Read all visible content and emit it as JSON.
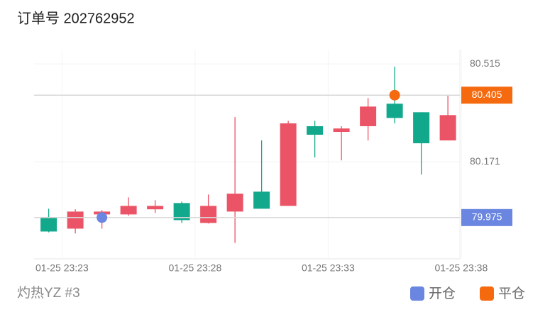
{
  "header": {
    "title": "订单号 202762952"
  },
  "footer": {
    "label": "灼热YZ #3"
  },
  "chart_data": {
    "type": "candlestick",
    "x": [
      0,
      1,
      2,
      3,
      4,
      5,
      6,
      7,
      8,
      9,
      10,
      11,
      12,
      13,
      14,
      15
    ],
    "open": [
      79.926,
      79.996,
      79.996,
      80.016,
      80.016,
      79.966,
      80.016,
      80.059,
      80.006,
      80.306,
      80.266,
      80.288,
      80.365,
      80.325,
      80.236,
      80.335
    ],
    "high": [
      80.006,
      80.004,
      80.001,
      80.046,
      80.036,
      80.031,
      80.056,
      80.328,
      80.246,
      80.315,
      80.315,
      80.296,
      80.395,
      80.505,
      80.345,
      80.405
    ],
    "low": [
      79.923,
      79.919,
      79.936,
      79.981,
      79.991,
      79.956,
      79.954,
      79.886,
      80.006,
      80.016,
      80.186,
      80.176,
      80.246,
      80.306,
      80.126,
      80.246
    ],
    "close": [
      79.976,
      79.936,
      79.986,
      79.986,
      80.004,
      80.026,
      79.956,
      79.996,
      80.066,
      80.016,
      80.296,
      80.276,
      80.296,
      80.375,
      80.345,
      80.246
    ],
    "up_color": "#12a88c",
    "down_color": "#eb5466",
    "xlim": [
      -0.55,
      15.45
    ],
    "xticks": [
      {
        "value": 0.5,
        "label": "01-25 23:23"
      },
      {
        "value": 5.5,
        "label": "01-25 23:28"
      },
      {
        "value": 10.5,
        "label": "01-25 23:33"
      },
      {
        "value": 15.5,
        "label": "01-25 23:38"
      }
    ],
    "ylim": [
      79.83,
      80.565
    ],
    "yticks": [
      80.515,
      80.171
    ],
    "grid": true,
    "markers": [
      {
        "name": "开仓",
        "color": "#6b86e0",
        "x": 2,
        "value": 79.975
      },
      {
        "name": "平仓",
        "color": "#f56a0f",
        "x": 13,
        "value": 80.405
      }
    ]
  }
}
